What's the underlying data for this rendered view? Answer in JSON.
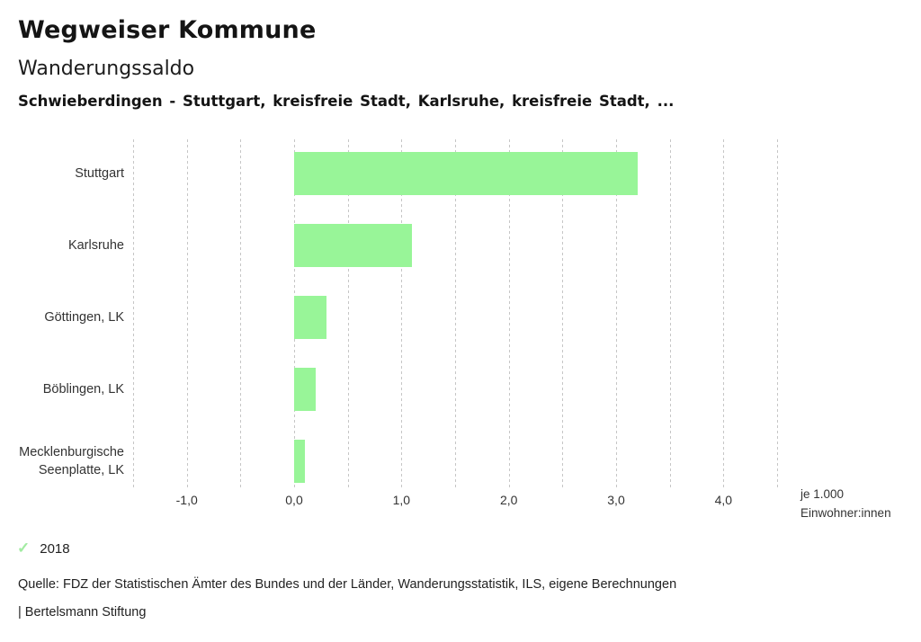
{
  "header": {
    "app_title": "Wegweiser Kommune",
    "chart_title": "Wanderungssaldo",
    "chart_subtitle": "Schwieberdingen - Stuttgart, kreisfreie Stadt, Karlsruhe, kreisfreie Stadt, ..."
  },
  "chart_data": {
    "type": "bar",
    "orientation": "horizontal",
    "title": "Wanderungssaldo",
    "categories": [
      "Stuttgart",
      "Karlsruhe",
      "Göttingen, LK",
      "Böblingen, LK",
      "Mecklenburgische Seenplatte, LK"
    ],
    "values": [
      3.2,
      1.1,
      0.3,
      0.2,
      0.1
    ],
    "series_name": "2018",
    "xlabel": "je 1.000 Einwohner:innen",
    "xlabel_line1": "je 1.000",
    "xlabel_line2": "Einwohner:innen",
    "xlim": [
      -1.5,
      4.5
    ],
    "gridline_step": 0.5,
    "grid": true,
    "x_ticks": [
      {
        "value": -1,
        "label": "-1,0"
      },
      {
        "value": 0,
        "label": "0,0"
      },
      {
        "value": 1,
        "label": "1,0"
      },
      {
        "value": 2,
        "label": "2,0"
      },
      {
        "value": 3,
        "label": "3,0"
      },
      {
        "value": 4,
        "label": "4,0"
      }
    ],
    "legend_position": "bottom-left"
  },
  "colors": {
    "bar": "#98f598",
    "checkmark": "#a2eba2",
    "gridline": "#c6c6c6"
  },
  "legend": {
    "check_icon": "✓",
    "year": "2018"
  },
  "footer": {
    "source": "Quelle: FDZ der Statistischen Ämter des Bundes und der Länder, Wanderungsstatistik, ILS, eigene Berechnungen",
    "branding": "| Bertelsmann Stiftung"
  }
}
